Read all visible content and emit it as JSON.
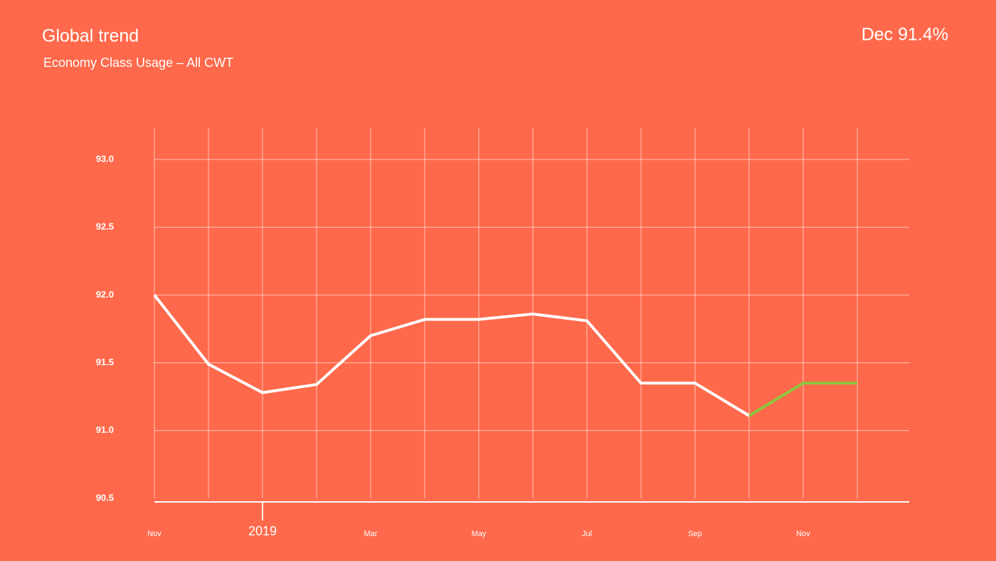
{
  "chart_data": {
    "type": "line",
    "title": "Global trend",
    "subtitle": "Economy Class Usage – All CWT",
    "annotation": "Dec  91.4%",
    "categories": [
      "Nov",
      null,
      "2019",
      null,
      "Mar",
      null,
      "May",
      null,
      "Jul",
      null,
      "Sep",
      null,
      "Nov",
      null
    ],
    "series": [
      {
        "color": "#ffffff",
        "values": [
          92.0,
          91.49,
          91.28,
          91.34,
          91.7,
          91.82,
          91.82,
          91.86,
          91.81,
          91.35,
          91.35,
          91.11,
          null,
          null
        ]
      },
      {
        "color": "#8dc63f",
        "values": [
          null,
          null,
          null,
          null,
          null,
          null,
          null,
          null,
          null,
          null,
          null,
          91.11,
          91.35,
          91.35
        ]
      }
    ],
    "ylim": [
      90.5,
      93.0
    ],
    "yticks": [
      {
        "value": 90.5,
        "label": "90.5"
      },
      {
        "value": 91.0,
        "label": "91.0"
      },
      {
        "value": 91.5,
        "label": "91.5"
      },
      {
        "value": 92.0,
        "label": "92.0"
      },
      {
        "value": 92.5,
        "label": "92.5"
      },
      {
        "value": 93.0,
        "label": "93.0"
      }
    ],
    "grid": true
  }
}
